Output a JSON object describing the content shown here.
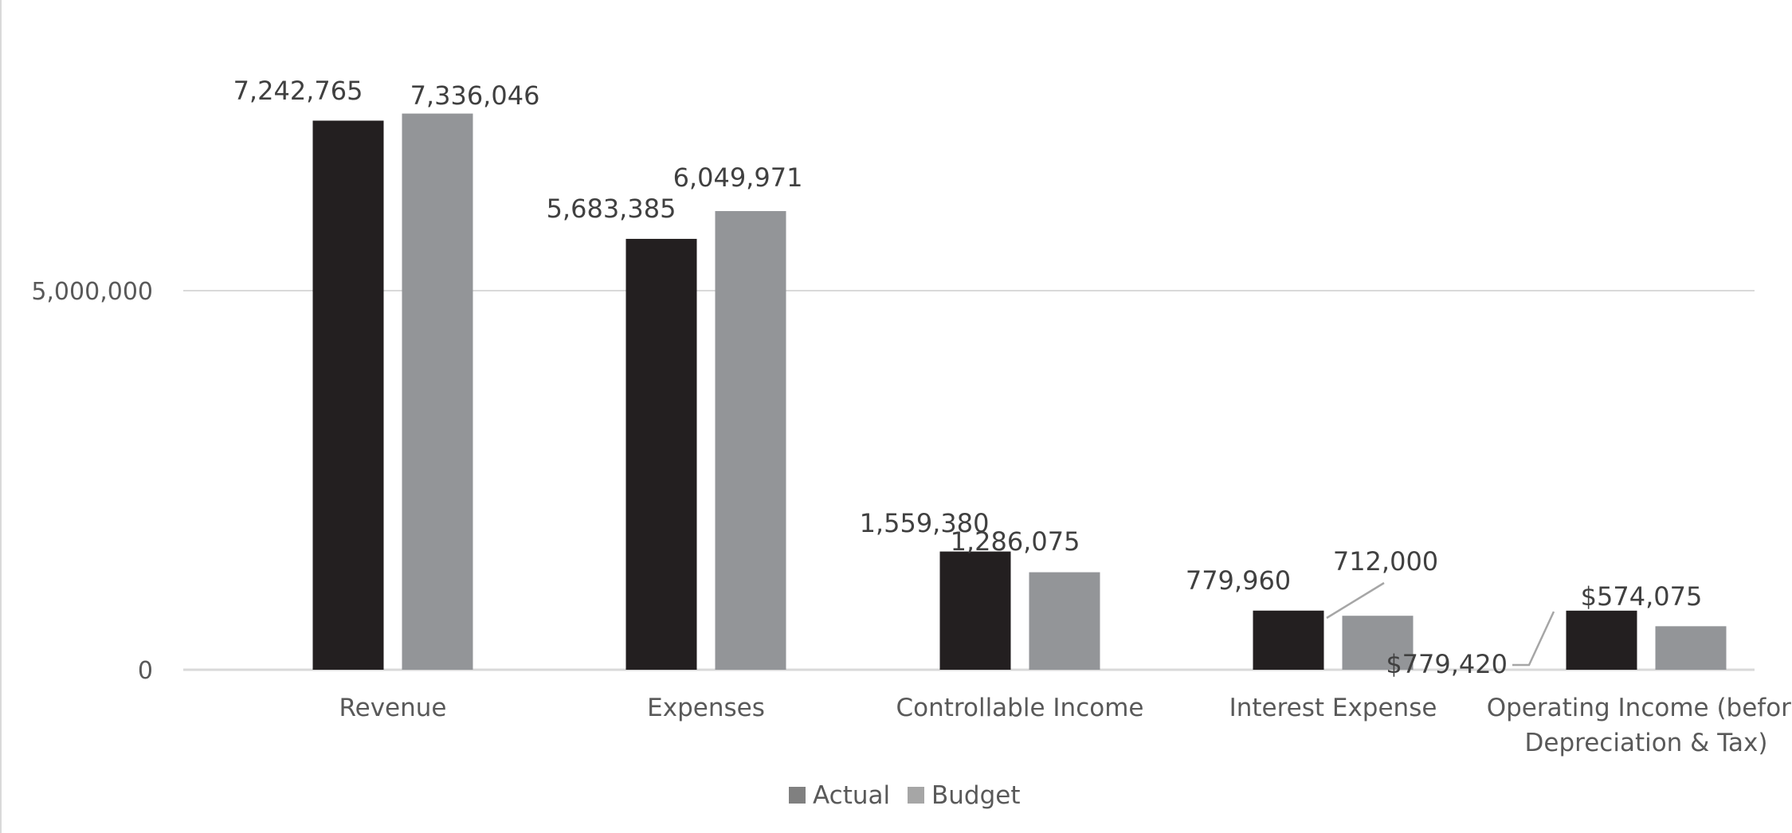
{
  "chart_data": {
    "type": "bar",
    "title": "",
    "xlabel": "",
    "ylabel": "",
    "ylim": [
      0,
      8000000
    ],
    "yticks": [
      {
        "value": 0,
        "label": "0"
      },
      {
        "value": 5000000,
        "label": "5,000,000"
      }
    ],
    "grid": true,
    "legend_position": "bottom",
    "categories": [
      [
        "Revenue"
      ],
      [
        "Expenses"
      ],
      [
        "Controllable Income"
      ],
      [
        "Interest Expense"
      ],
      [
        "Operating Income (before",
        "Depreciation & Tax)"
      ]
    ],
    "series": [
      {
        "name": "Actual",
        "color": "#231f20",
        "legend_color": "#808080",
        "values": [
          7242765,
          5683385,
          1559380,
          779960,
          779420
        ],
        "labels": [
          "7,242,765",
          "5,683,385",
          "1,559,380",
          "779,960",
          "$779,420"
        ]
      },
      {
        "name": "Budget",
        "color": "#939598",
        "legend_color": "#a6a6a6",
        "values": [
          7336046,
          6049971,
          1286075,
          712000,
          574075
        ],
        "labels": [
          "7,336,046",
          "6,049,971",
          "1,286,075",
          "712,000",
          "$574,075"
        ]
      }
    ]
  }
}
